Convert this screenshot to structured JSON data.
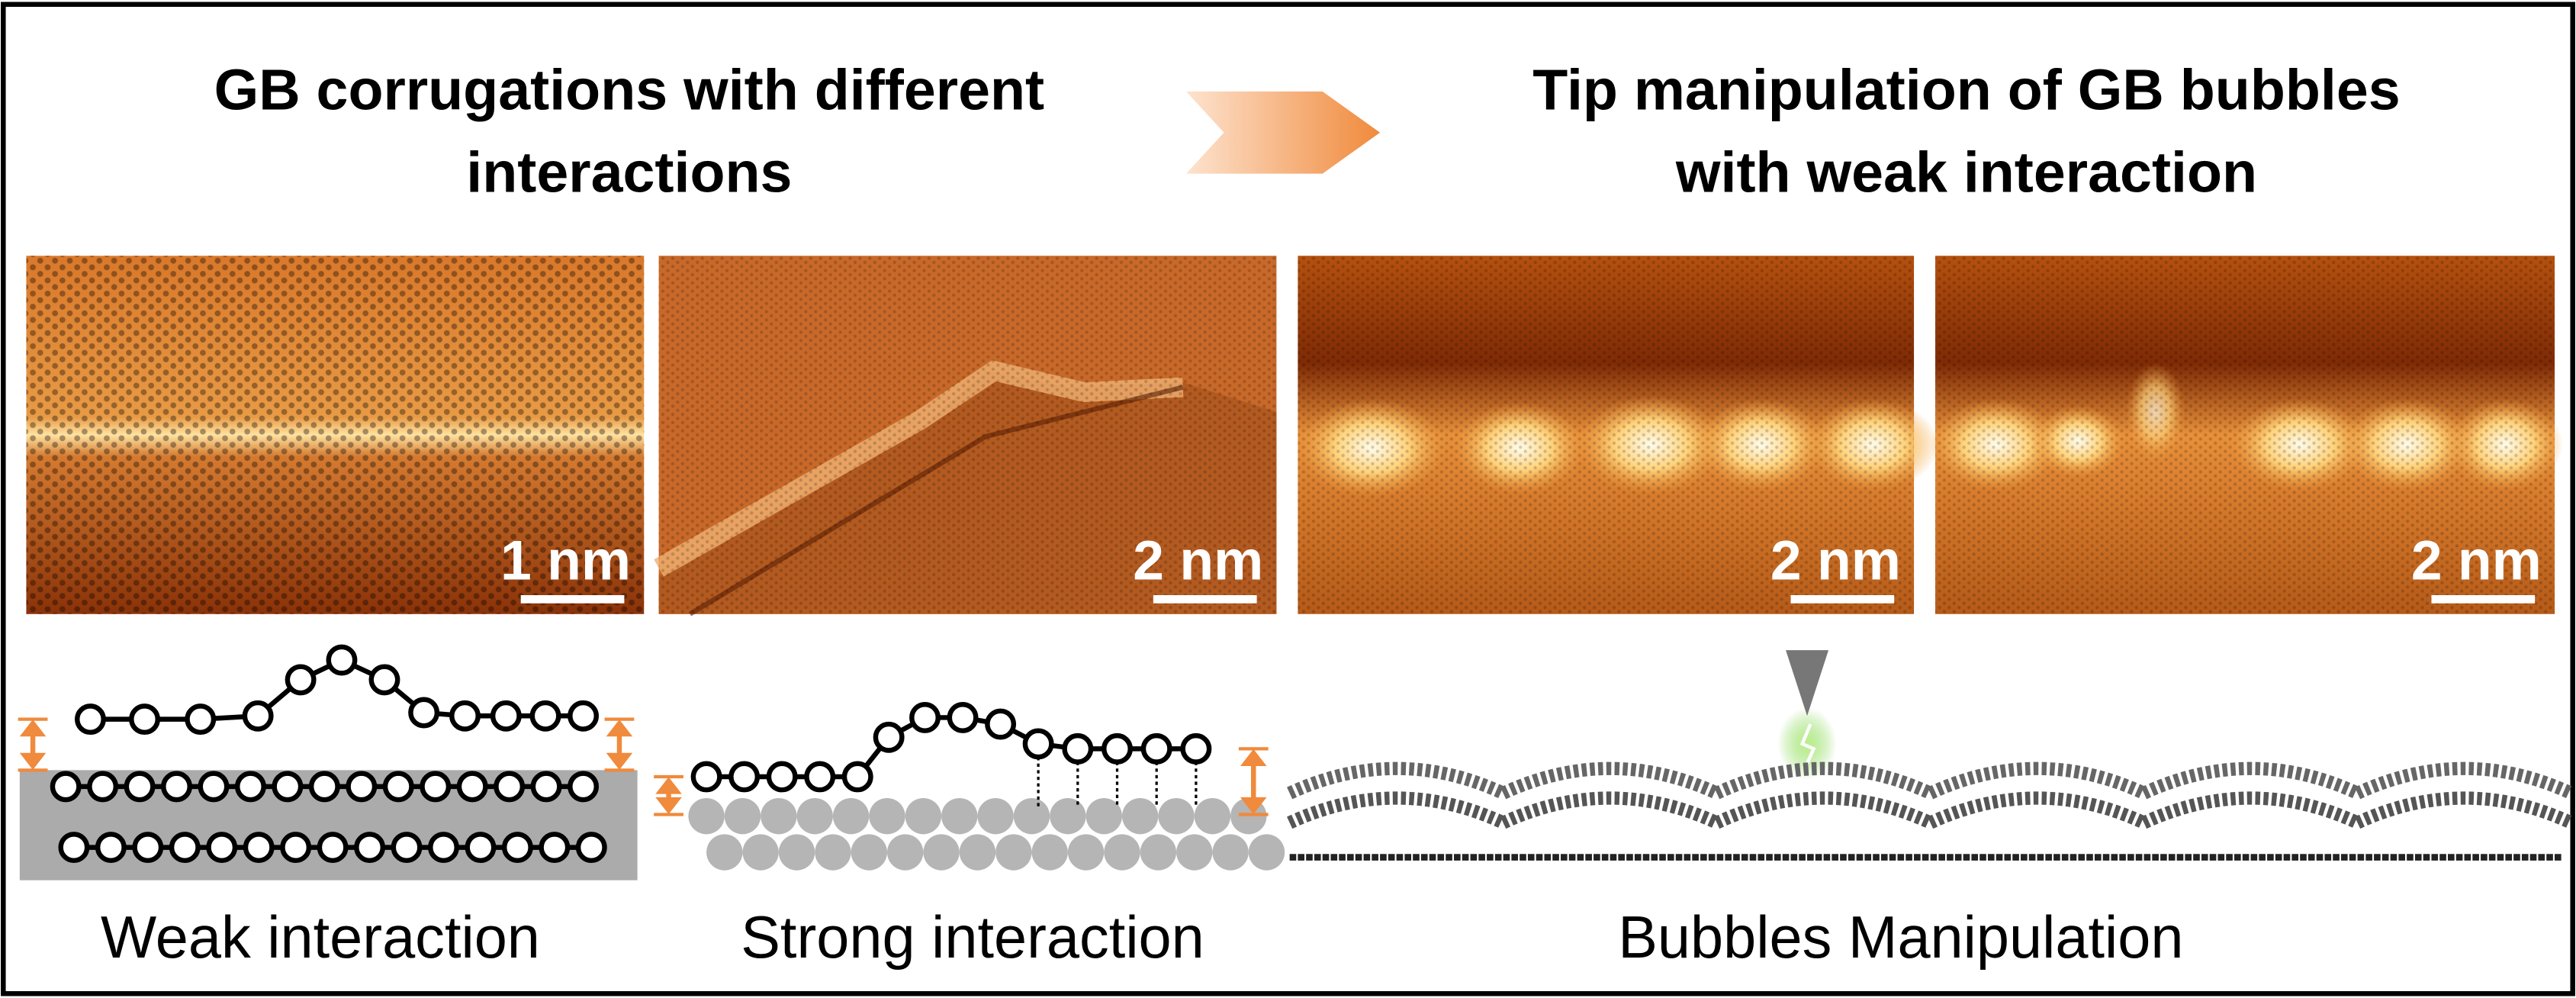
{
  "header": {
    "left_title": [
      "GB corrugations with different",
      "interactions"
    ],
    "right_title": [
      "Tip manipulation of GB bubbles",
      "with weak interaction"
    ]
  },
  "images": [
    {
      "scale_bar": "1 nm"
    },
    {
      "scale_bar": "2 nm"
    },
    {
      "scale_bar": "2 nm"
    },
    {
      "scale_bar": "2 nm"
    }
  ],
  "captions": [
    "Weak interaction",
    "Strong interaction",
    "Bubbles Manipulation"
  ]
}
